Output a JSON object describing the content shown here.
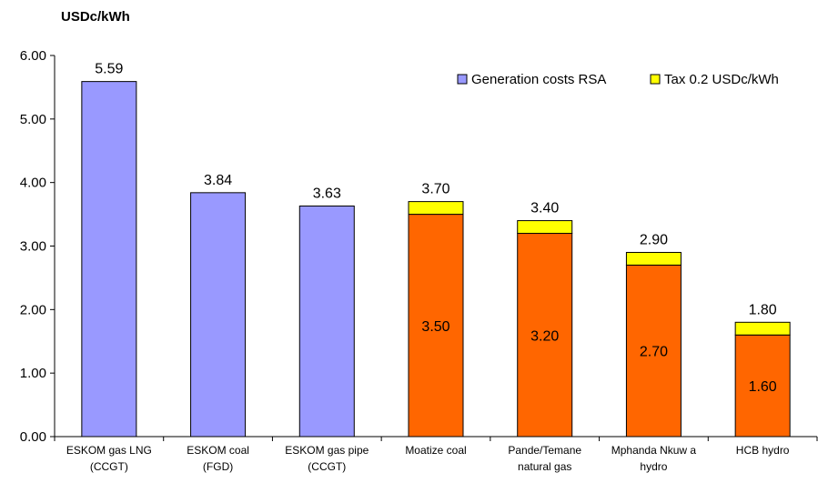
{
  "chart_data": {
    "type": "bar",
    "stacked": true,
    "ylabel": "USDc/kWh",
    "ylim": [
      0,
      6
    ],
    "yticks": [
      "0.00",
      "1.00",
      "2.00",
      "3.00",
      "4.00",
      "5.00",
      "6.00"
    ],
    "grid": false,
    "legend_position": "top-right",
    "categories": [
      [
        "ESKOM gas LNG",
        "(CCGT)"
      ],
      [
        "ESKOM coal",
        "(FGD)"
      ],
      [
        "ESKOM gas pipe",
        "(CCGT)"
      ],
      [
        "Moatize coal"
      ],
      [
        "Pande/Temane",
        "natural gas"
      ],
      [
        "Mphanda Nkuw a",
        "hydro"
      ],
      [
        "HCB hydro"
      ]
    ],
    "series": [
      {
        "name": "Generation costs RSA",
        "values": [
          5.59,
          3.84,
          3.63,
          3.5,
          3.2,
          2.7,
          1.6
        ],
        "colors": [
          "#9999ff",
          "#9999ff",
          "#9999ff",
          "#ff6600",
          "#ff6600",
          "#ff6600",
          "#ff6600"
        ],
        "legend_color": "#9999ff",
        "inner_labels": [
          "",
          "",
          "",
          "3.50",
          "3.20",
          "2.70",
          "1.60"
        ]
      },
      {
        "name": "Tax 0.2 USDc/kWh",
        "values": [
          0,
          0,
          0,
          0.2,
          0.2,
          0.2,
          0.2
        ],
        "color": "#ffff00"
      }
    ],
    "totals": [
      "5.59",
      "3.84",
      "3.63",
      "3.70",
      "3.40",
      "2.90",
      "1.80"
    ]
  }
}
